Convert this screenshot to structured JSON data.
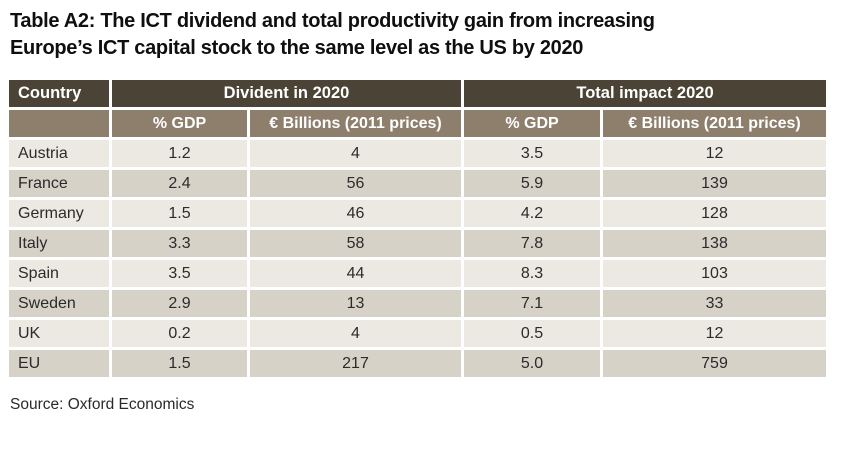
{
  "title": {
    "prefix": "Table A2:",
    "line1_rest": " The ICT dividend and total productivity gain from increasing",
    "line2": "Europe’s ICT capital stock to the same level as the US by 2020"
  },
  "table": {
    "country_header": "Country",
    "group_headers": [
      "Divident in 2020",
      "Total impact 2020"
    ],
    "sub_headers": [
      "% GDP",
      "€ Billions (2011 prices)",
      "% GDP",
      "€ Billions (2011 prices)"
    ],
    "rows": [
      {
        "country": "Austria",
        "dividend_gdp": "1.2",
        "dividend_eur_bn": "4",
        "total_gdp": "3.5",
        "total_eur_bn": "12"
      },
      {
        "country": "France",
        "dividend_gdp": "2.4",
        "dividend_eur_bn": "56",
        "total_gdp": "5.9",
        "total_eur_bn": "139"
      },
      {
        "country": "Germany",
        "dividend_gdp": "1.5",
        "dividend_eur_bn": "46",
        "total_gdp": "4.2",
        "total_eur_bn": "128"
      },
      {
        "country": "Italy",
        "dividend_gdp": "3.3",
        "dividend_eur_bn": "58",
        "total_gdp": "7.8",
        "total_eur_bn": "138"
      },
      {
        "country": "Spain",
        "dividend_gdp": "3.5",
        "dividend_eur_bn": "44",
        "total_gdp": "8.3",
        "total_eur_bn": "103"
      },
      {
        "country": "Sweden",
        "dividend_gdp": "2.9",
        "dividend_eur_bn": "13",
        "total_gdp": "7.1",
        "total_eur_bn": "33"
      },
      {
        "country": "UK",
        "dividend_gdp": "0.2",
        "dividend_eur_bn": "4",
        "total_gdp": "0.5",
        "total_eur_bn": "12"
      },
      {
        "country": "EU",
        "dividend_gdp": "1.5",
        "dividend_eur_bn": "217",
        "total_gdp": "5.0",
        "total_eur_bn": "759"
      }
    ]
  },
  "source": "Source: Oxford Economics",
  "colors": {
    "header_dark": "#4a4336",
    "header_taupe": "#8d7f6c",
    "row_light": "#ece9e2",
    "row_dark": "#d7d2c8"
  },
  "chart_data": {
    "type": "table",
    "title": "Table A2: The ICT dividend and total productivity gain from increasing Europe’s ICT capital stock to the same level as the US by 2020",
    "columns": [
      "Country",
      "Divident in 2020 — % GDP",
      "Divident in 2020 — € Billions (2011 prices)",
      "Total impact 2020 — % GDP",
      "Total impact 2020 — € Billions (2011 prices)"
    ],
    "rows": [
      [
        "Austria",
        1.2,
        4,
        3.5,
        12
      ],
      [
        "France",
        2.4,
        56,
        5.9,
        139
      ],
      [
        "Germany",
        1.5,
        46,
        4.2,
        128
      ],
      [
        "Italy",
        3.3,
        58,
        7.8,
        138
      ],
      [
        "Spain",
        3.5,
        44,
        8.3,
        103
      ],
      [
        "Sweden",
        2.9,
        13,
        7.1,
        33
      ],
      [
        "UK",
        0.2,
        4,
        0.5,
        12
      ],
      [
        "EU",
        1.5,
        217,
        5.0,
        759
      ]
    ],
    "source": "Source: Oxford Economics"
  }
}
